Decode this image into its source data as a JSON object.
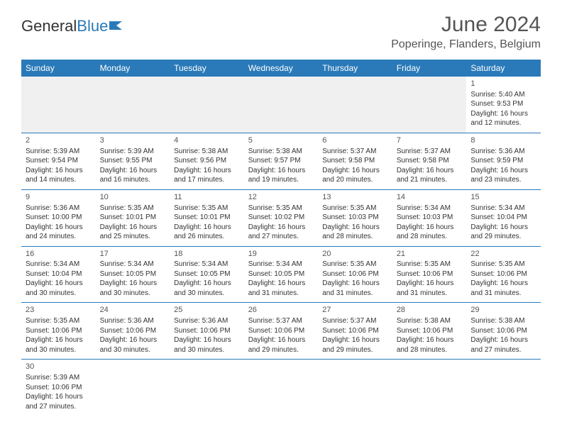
{
  "brand": {
    "name1": "General",
    "name2": "Blue"
  },
  "title": "June 2024",
  "location": "Poperinge, Flanders, Belgium",
  "colors": {
    "header_bg": "#2a7ab9",
    "header_text": "#ffffff",
    "rule": "#2a7ab9",
    "blank_bg": "#f0f0f0"
  },
  "weekdays": [
    "Sunday",
    "Monday",
    "Tuesday",
    "Wednesday",
    "Thursday",
    "Friday",
    "Saturday"
  ],
  "weeks": [
    [
      null,
      null,
      null,
      null,
      null,
      null,
      {
        "n": "1",
        "sr": "Sunrise: 5:40 AM",
        "ss": "Sunset: 9:53 PM",
        "d1": "Daylight: 16 hours",
        "d2": "and 12 minutes."
      }
    ],
    [
      {
        "n": "2",
        "sr": "Sunrise: 5:39 AM",
        "ss": "Sunset: 9:54 PM",
        "d1": "Daylight: 16 hours",
        "d2": "and 14 minutes."
      },
      {
        "n": "3",
        "sr": "Sunrise: 5:39 AM",
        "ss": "Sunset: 9:55 PM",
        "d1": "Daylight: 16 hours",
        "d2": "and 16 minutes."
      },
      {
        "n": "4",
        "sr": "Sunrise: 5:38 AM",
        "ss": "Sunset: 9:56 PM",
        "d1": "Daylight: 16 hours",
        "d2": "and 17 minutes."
      },
      {
        "n": "5",
        "sr": "Sunrise: 5:38 AM",
        "ss": "Sunset: 9:57 PM",
        "d1": "Daylight: 16 hours",
        "d2": "and 19 minutes."
      },
      {
        "n": "6",
        "sr": "Sunrise: 5:37 AM",
        "ss": "Sunset: 9:58 PM",
        "d1": "Daylight: 16 hours",
        "d2": "and 20 minutes."
      },
      {
        "n": "7",
        "sr": "Sunrise: 5:37 AM",
        "ss": "Sunset: 9:58 PM",
        "d1": "Daylight: 16 hours",
        "d2": "and 21 minutes."
      },
      {
        "n": "8",
        "sr": "Sunrise: 5:36 AM",
        "ss": "Sunset: 9:59 PM",
        "d1": "Daylight: 16 hours",
        "d2": "and 23 minutes."
      }
    ],
    [
      {
        "n": "9",
        "sr": "Sunrise: 5:36 AM",
        "ss": "Sunset: 10:00 PM",
        "d1": "Daylight: 16 hours",
        "d2": "and 24 minutes."
      },
      {
        "n": "10",
        "sr": "Sunrise: 5:35 AM",
        "ss": "Sunset: 10:01 PM",
        "d1": "Daylight: 16 hours",
        "d2": "and 25 minutes."
      },
      {
        "n": "11",
        "sr": "Sunrise: 5:35 AM",
        "ss": "Sunset: 10:01 PM",
        "d1": "Daylight: 16 hours",
        "d2": "and 26 minutes."
      },
      {
        "n": "12",
        "sr": "Sunrise: 5:35 AM",
        "ss": "Sunset: 10:02 PM",
        "d1": "Daylight: 16 hours",
        "d2": "and 27 minutes."
      },
      {
        "n": "13",
        "sr": "Sunrise: 5:35 AM",
        "ss": "Sunset: 10:03 PM",
        "d1": "Daylight: 16 hours",
        "d2": "and 28 minutes."
      },
      {
        "n": "14",
        "sr": "Sunrise: 5:34 AM",
        "ss": "Sunset: 10:03 PM",
        "d1": "Daylight: 16 hours",
        "d2": "and 28 minutes."
      },
      {
        "n": "15",
        "sr": "Sunrise: 5:34 AM",
        "ss": "Sunset: 10:04 PM",
        "d1": "Daylight: 16 hours",
        "d2": "and 29 minutes."
      }
    ],
    [
      {
        "n": "16",
        "sr": "Sunrise: 5:34 AM",
        "ss": "Sunset: 10:04 PM",
        "d1": "Daylight: 16 hours",
        "d2": "and 30 minutes."
      },
      {
        "n": "17",
        "sr": "Sunrise: 5:34 AM",
        "ss": "Sunset: 10:05 PM",
        "d1": "Daylight: 16 hours",
        "d2": "and 30 minutes."
      },
      {
        "n": "18",
        "sr": "Sunrise: 5:34 AM",
        "ss": "Sunset: 10:05 PM",
        "d1": "Daylight: 16 hours",
        "d2": "and 30 minutes."
      },
      {
        "n": "19",
        "sr": "Sunrise: 5:34 AM",
        "ss": "Sunset: 10:05 PM",
        "d1": "Daylight: 16 hours",
        "d2": "and 31 minutes."
      },
      {
        "n": "20",
        "sr": "Sunrise: 5:35 AM",
        "ss": "Sunset: 10:06 PM",
        "d1": "Daylight: 16 hours",
        "d2": "and 31 minutes."
      },
      {
        "n": "21",
        "sr": "Sunrise: 5:35 AM",
        "ss": "Sunset: 10:06 PM",
        "d1": "Daylight: 16 hours",
        "d2": "and 31 minutes."
      },
      {
        "n": "22",
        "sr": "Sunrise: 5:35 AM",
        "ss": "Sunset: 10:06 PM",
        "d1": "Daylight: 16 hours",
        "d2": "and 31 minutes."
      }
    ],
    [
      {
        "n": "23",
        "sr": "Sunrise: 5:35 AM",
        "ss": "Sunset: 10:06 PM",
        "d1": "Daylight: 16 hours",
        "d2": "and 30 minutes."
      },
      {
        "n": "24",
        "sr": "Sunrise: 5:36 AM",
        "ss": "Sunset: 10:06 PM",
        "d1": "Daylight: 16 hours",
        "d2": "and 30 minutes."
      },
      {
        "n": "25",
        "sr": "Sunrise: 5:36 AM",
        "ss": "Sunset: 10:06 PM",
        "d1": "Daylight: 16 hours",
        "d2": "and 30 minutes."
      },
      {
        "n": "26",
        "sr": "Sunrise: 5:37 AM",
        "ss": "Sunset: 10:06 PM",
        "d1": "Daylight: 16 hours",
        "d2": "and 29 minutes."
      },
      {
        "n": "27",
        "sr": "Sunrise: 5:37 AM",
        "ss": "Sunset: 10:06 PM",
        "d1": "Daylight: 16 hours",
        "d2": "and 29 minutes."
      },
      {
        "n": "28",
        "sr": "Sunrise: 5:38 AM",
        "ss": "Sunset: 10:06 PM",
        "d1": "Daylight: 16 hours",
        "d2": "and 28 minutes."
      },
      {
        "n": "29",
        "sr": "Sunrise: 5:38 AM",
        "ss": "Sunset: 10:06 PM",
        "d1": "Daylight: 16 hours",
        "d2": "and 27 minutes."
      }
    ],
    [
      {
        "n": "30",
        "sr": "Sunrise: 5:39 AM",
        "ss": "Sunset: 10:06 PM",
        "d1": "Daylight: 16 hours",
        "d2": "and 27 minutes."
      },
      null,
      null,
      null,
      null,
      null,
      null
    ]
  ]
}
